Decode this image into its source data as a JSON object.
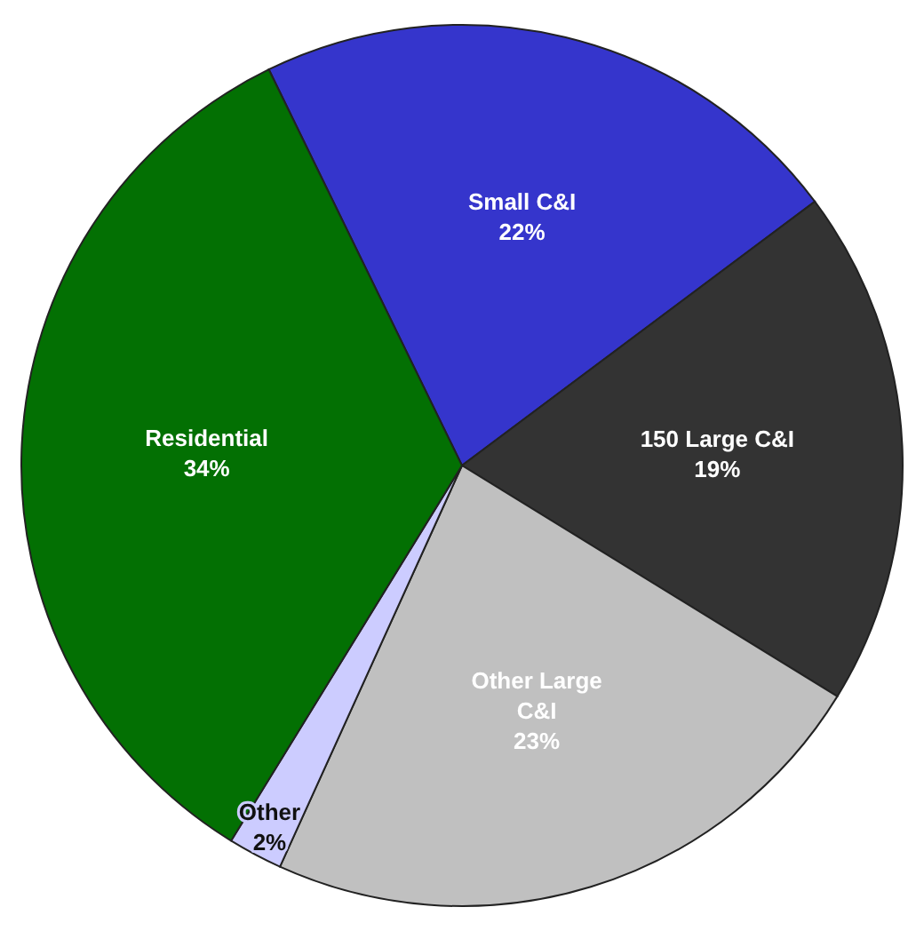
{
  "chart_data": {
    "type": "pie",
    "categories": [
      "Small C&I",
      "150 Large C&I",
      "Other Large C&I",
      "Other",
      "Residential"
    ],
    "values": [
      22,
      19,
      23,
      2,
      34
    ],
    "colors": [
      "#3535cc",
      "#333333",
      "#c0c0c0",
      "#ccccff",
      "#037003"
    ],
    "value_labels": [
      "22%",
      "19%",
      "23%",
      "2%",
      "34%"
    ],
    "data_labels": true
  }
}
